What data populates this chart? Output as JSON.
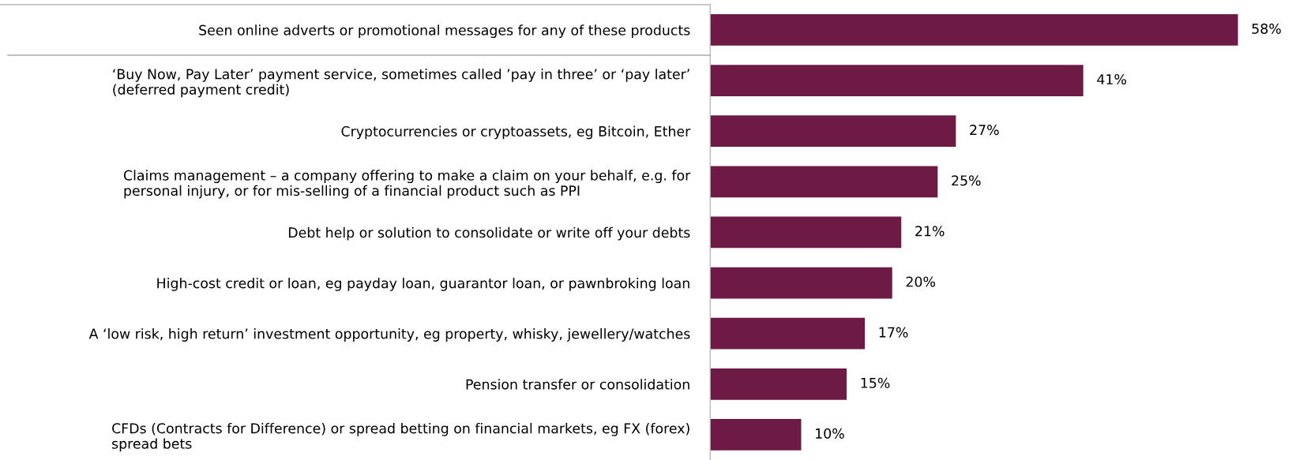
{
  "chart_data": {
    "type": "bar",
    "orientation": "horizontal",
    "data_labels": true,
    "grid": false,
    "legend": false,
    "categories": [
      "Seen online adverts or promotional messages for any of these products",
      "‘Buy Now, Pay Later’ payment service, sometimes called ’pay in three’ or ‘pay later’\n(deferred payment credit)",
      "Cryptocurrencies or cryptoassets, eg Bitcoin, Ether",
      "Claims management – a company offering to make a claim on your behalf, e.g. for\npersonal injury, or for mis-selling of a financial product such as PPI",
      "Debt help or solution to consolidate or write off your debts",
      "High-cost credit or loan, eg payday loan, guarantor loan, or pawnbroking loan",
      "A ‘low risk, high return’ investment opportunity, eg property, whisky, jewellery/watches",
      "Pension transfer or consolidation",
      "CFDs (Contracts for Difference) or spread betting on financial markets, eg FX (forex)\nspread bets"
    ],
    "values": [
      58,
      41,
      27,
      25,
      21,
      20,
      17,
      15,
      10
    ],
    "value_labels": [
      "58%",
      "41%",
      "27%",
      "25%",
      "21%",
      "20%",
      "17%",
      "15%",
      "10%"
    ],
    "color": "#6d1a45"
  }
}
